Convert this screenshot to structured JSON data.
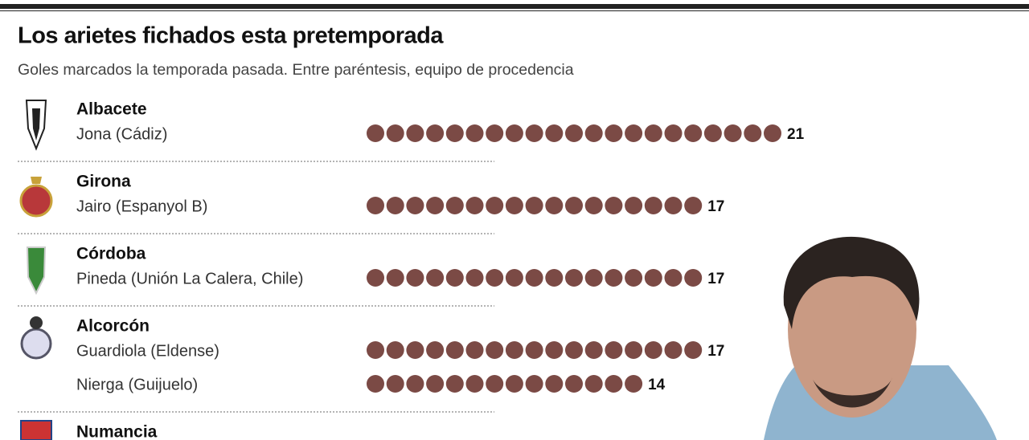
{
  "chart_data": {
    "type": "pictogram",
    "title": "Los arietes fichados esta pretemporada",
    "subtitle": "Goles marcados la temporada pasada. Entre paréntesis, equipo de procedencia",
    "color": "#7b4a45",
    "groups": [
      {
        "team": "Albacete",
        "players": [
          {
            "name": "Jona (Cádiz)",
            "value": 21
          }
        ]
      },
      {
        "team": "Girona",
        "players": [
          {
            "name": "Jairo (Espanyol B)",
            "value": 17
          }
        ]
      },
      {
        "team": "Córdoba",
        "players": [
          {
            "name": "Pineda (Unión La Calera, Chile)",
            "value": 17
          }
        ]
      },
      {
        "team": "Alcorcón",
        "players": [
          {
            "name": "Guardiola (Eldense)",
            "value": 17
          },
          {
            "name": "Nierga (Guijuelo)",
            "value": 14
          }
        ]
      },
      {
        "team": "Numancia",
        "players": []
      }
    ]
  }
}
